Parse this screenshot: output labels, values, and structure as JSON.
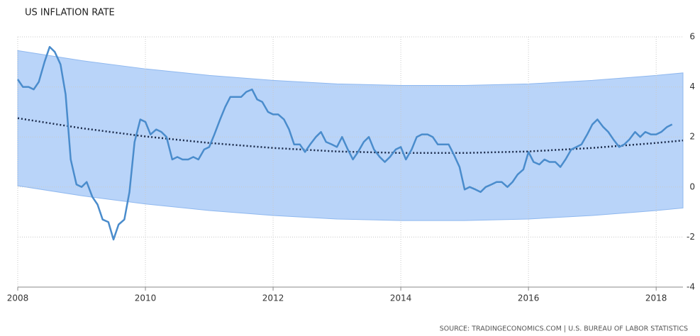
{
  "chart_data": {
    "type": "line",
    "title": "US INFLATION RATE",
    "source": "SOURCE: TRADINGECONOMICS.COM | U.S. BUREAU OF LABOR STATISTICS",
    "x": [
      2008.0,
      2008.08,
      2008.17,
      2008.25,
      2008.33,
      2008.42,
      2008.5,
      2008.58,
      2008.67,
      2008.75,
      2008.83,
      2008.92,
      2009.0,
      2009.08,
      2009.17,
      2009.25,
      2009.33,
      2009.42,
      2009.5,
      2009.58,
      2009.67,
      2009.75,
      2009.83,
      2009.92,
      2010.0,
      2010.08,
      2010.17,
      2010.25,
      2010.33,
      2010.42,
      2010.5,
      2010.58,
      2010.67,
      2010.75,
      2010.83,
      2010.92,
      2011.0,
      2011.08,
      2011.17,
      2011.25,
      2011.33,
      2011.42,
      2011.5,
      2011.58,
      2011.67,
      2011.75,
      2011.83,
      2011.92,
      2012.0,
      2012.08,
      2012.17,
      2012.25,
      2012.33,
      2012.42,
      2012.5,
      2012.58,
      2012.67,
      2012.75,
      2012.83,
      2012.92,
      2013.0,
      2013.08,
      2013.17,
      2013.25,
      2013.33,
      2013.42,
      2013.5,
      2013.58,
      2013.67,
      2013.75,
      2013.83,
      2013.92,
      2014.0,
      2014.08,
      2014.17,
      2014.25,
      2014.33,
      2014.42,
      2014.5,
      2014.58,
      2014.67,
      2014.75,
      2014.83,
      2014.92,
      2015.0,
      2015.08,
      2015.17,
      2015.25,
      2015.33,
      2015.42,
      2015.5,
      2015.58,
      2015.67,
      2015.75,
      2015.83,
      2015.92,
      2016.0,
      2016.08,
      2016.17,
      2016.25,
      2016.33,
      2016.42,
      2016.5,
      2016.58,
      2016.67,
      2016.75,
      2016.83,
      2016.92,
      2017.0,
      2017.08,
      2017.17,
      2017.25,
      2017.33,
      2017.42,
      2017.5,
      2017.58,
      2017.67,
      2017.75,
      2017.83,
      2017.92,
      2018.0,
      2018.08,
      2018.17,
      2018.25
    ],
    "series": [
      {
        "color": "#4a8ccc",
        "values": [
          4.3,
          4.0,
          4.0,
          3.9,
          4.2,
          5.0,
          5.6,
          5.4,
          4.9,
          3.7,
          1.1,
          0.1,
          0.0,
          0.2,
          -0.4,
          -0.7,
          -1.3,
          -1.4,
          -2.1,
          -1.5,
          -1.3,
          -0.2,
          1.8,
          2.7,
          2.6,
          2.1,
          2.3,
          2.2,
          2.0,
          1.1,
          1.2,
          1.1,
          1.1,
          1.2,
          1.1,
          1.5,
          1.6,
          2.1,
          2.7,
          3.2,
          3.6,
          3.6,
          3.6,
          3.8,
          3.9,
          3.5,
          3.4,
          3.0,
          2.9,
          2.9,
          2.7,
          2.3,
          1.7,
          1.7,
          1.4,
          1.7,
          2.0,
          2.2,
          1.8,
          1.7,
          1.6,
          2.0,
          1.5,
          1.1,
          1.4,
          1.8,
          2.0,
          1.5,
          1.2,
          1.0,
          1.2,
          1.5,
          1.6,
          1.1,
          1.5,
          2.0,
          2.1,
          2.1,
          2.0,
          1.7,
          1.7,
          1.7,
          1.3,
          0.8,
          -0.1,
          0.0,
          -0.1,
          -0.2,
          0.0,
          0.1,
          0.2,
          0.2,
          0.0,
          0.2,
          0.5,
          0.7,
          1.4,
          1.0,
          0.9,
          1.1,
          1.0,
          1.0,
          0.8,
          1.1,
          1.5,
          1.6,
          1.7,
          2.1,
          2.5,
          2.7,
          2.4,
          2.2,
          1.9,
          1.6,
          1.7,
          1.9,
          2.2,
          2.0,
          2.2,
          2.1,
          2.1,
          2.2,
          2.4,
          2.5
        ]
      }
    ],
    "trend": {
      "color": "#1a2a4a",
      "x": [
        2008,
        2009,
        2010,
        2011,
        2012,
        2013,
        2014,
        2015,
        2016,
        2017,
        2018,
        2018.42
      ],
      "values": [
        2.75,
        2.35,
        2.02,
        1.76,
        1.56,
        1.42,
        1.36,
        1.36,
        1.42,
        1.56,
        1.76,
        1.86
      ]
    },
    "band": {
      "color": "#b9d4f9",
      "upper": [
        5.45,
        5.05,
        4.72,
        4.46,
        4.26,
        4.12,
        4.06,
        4.06,
        4.12,
        4.26,
        4.46,
        4.56
      ],
      "lower": [
        0.05,
        -0.35,
        -0.68,
        -0.94,
        -1.14,
        -1.28,
        -1.34,
        -1.34,
        -1.28,
        -1.14,
        -0.94,
        -0.84
      ]
    },
    "xlim": [
      2008,
      2018.42
    ],
    "xticks": [
      2008,
      2010,
      2012,
      2014,
      2016,
      2018
    ],
    "ylim": [
      -4,
      6
    ],
    "yticks": [
      -4,
      -2,
      0,
      2,
      4,
      6
    ],
    "grid": true
  }
}
